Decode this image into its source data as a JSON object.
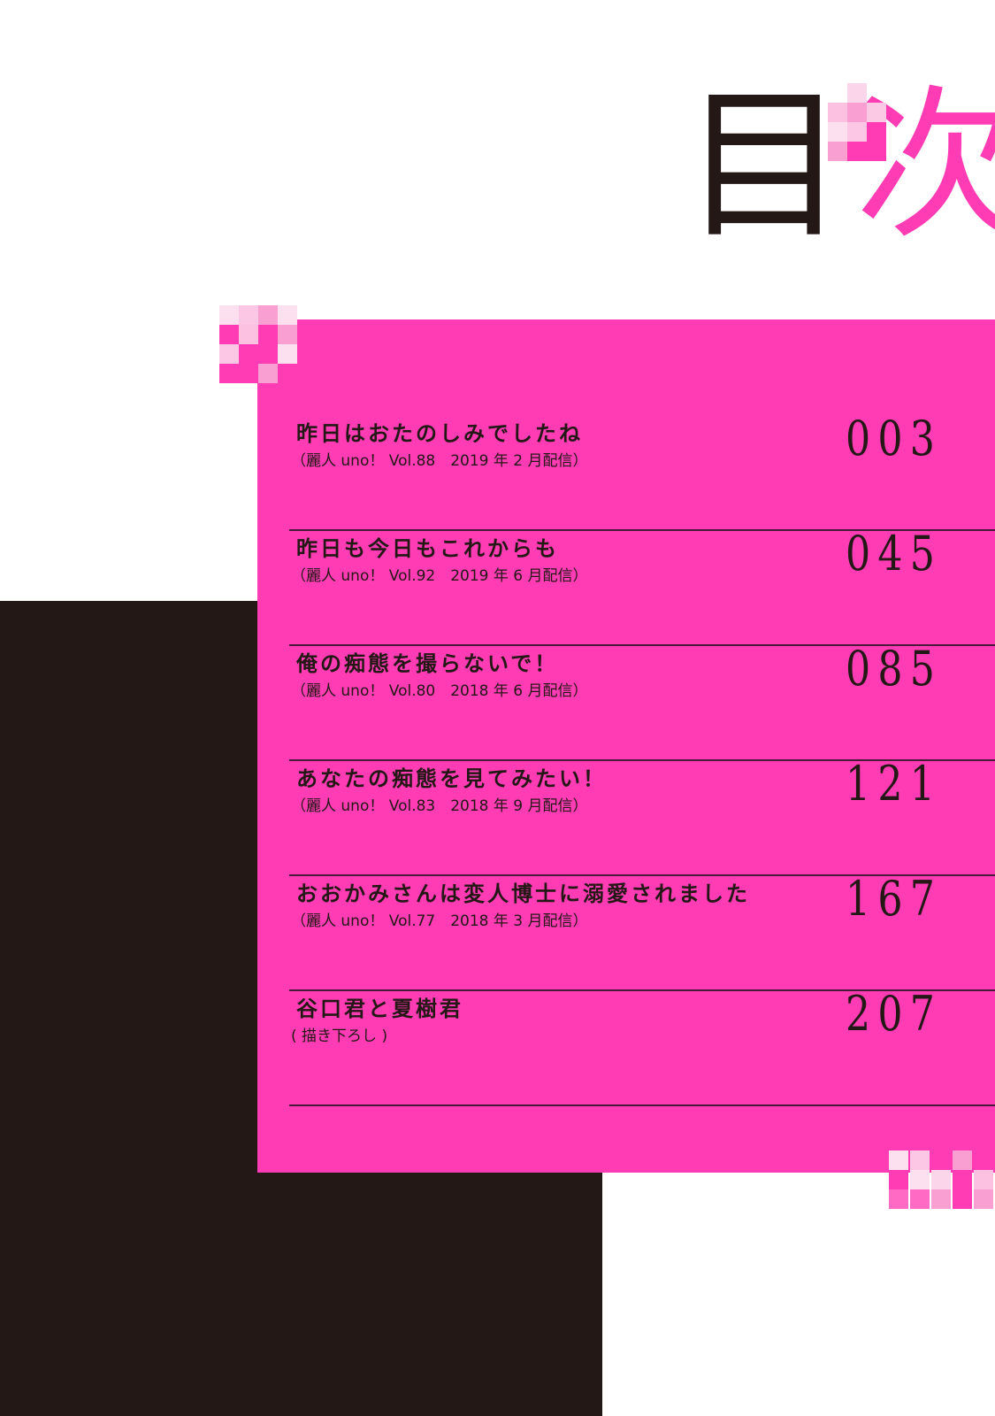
{
  "page": {
    "title_char_1": "目",
    "title_char_2": "次",
    "colors": {
      "pink": "#ff3cb4",
      "black": "#231816",
      "white": "#ffffff"
    }
  },
  "entries": [
    {
      "title": "昨日はおたのしみでしたね",
      "source": "（麗人 uno！ Vol.88　2019 年 2 月配信）",
      "page": "003"
    },
    {
      "title": "昨日も今日もこれからも",
      "source": "（麗人 uno！ Vol.92　2019 年 6 月配信）",
      "page": "045"
    },
    {
      "title": "俺の痴態を撮らないで！",
      "source": "（麗人 uno！ Vol.80　2018 年 6 月配信）",
      "page": "085"
    },
    {
      "title": "あなたの痴態を見てみたい！",
      "source": "（麗人 uno！ Vol.83　2018 年 9 月配信）",
      "page": "121"
    },
    {
      "title": "おおかみさんは変人博士に溺愛されました",
      "source": "（麗人 uno！ Vol.77　2018 年 3 月配信）",
      "page": "167"
    },
    {
      "title": "谷口君と夏樹君",
      "source": "( 描き下ろし )",
      "page": "207"
    }
  ]
}
